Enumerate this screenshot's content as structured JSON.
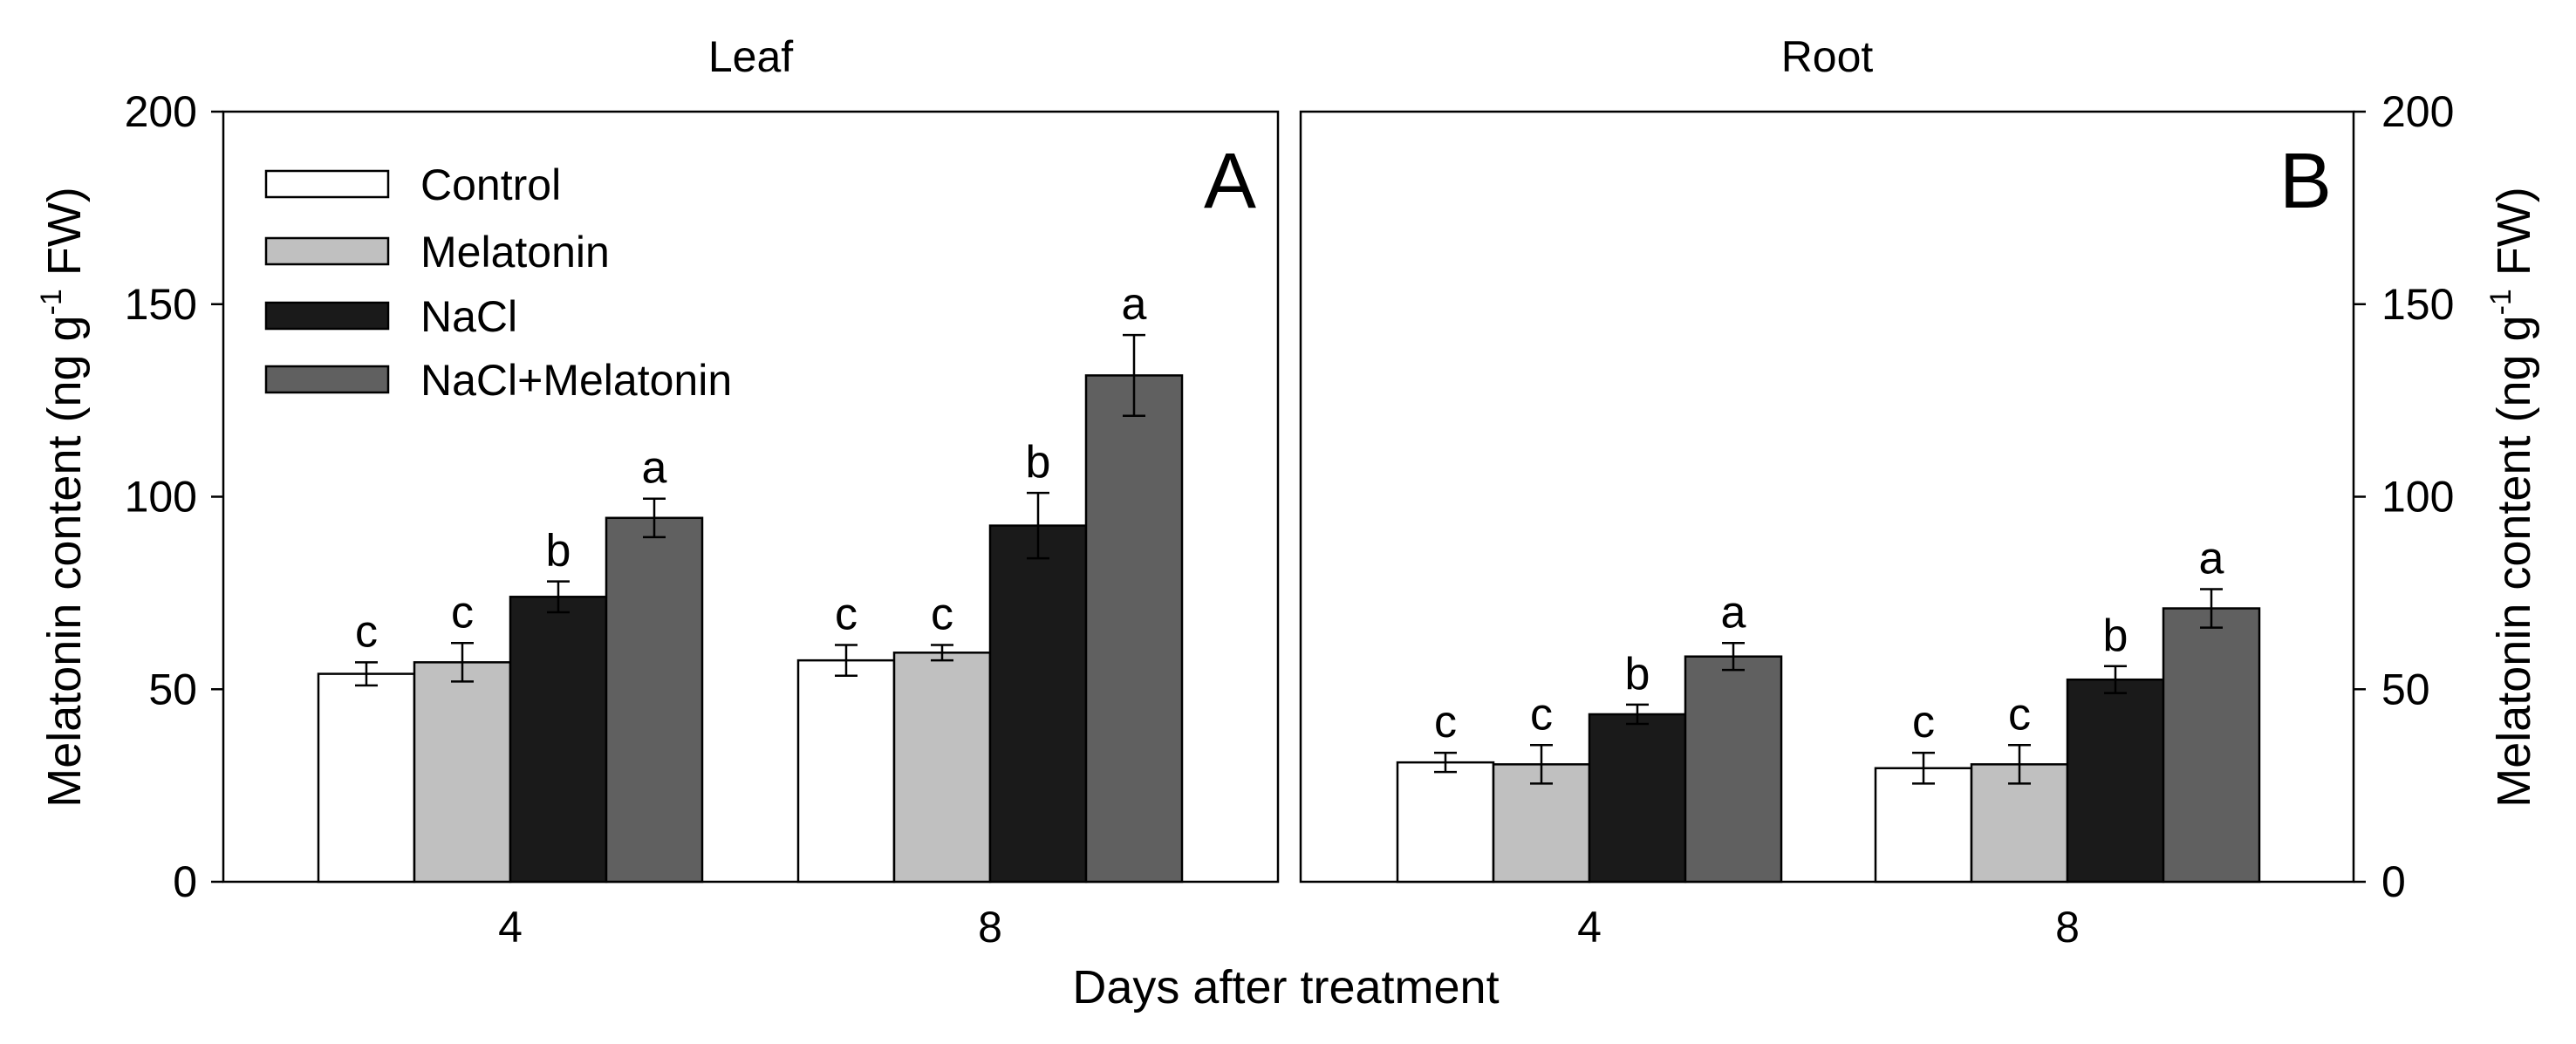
{
  "chart_data": [
    {
      "type": "bar",
      "title": "Leaf",
      "panel_label": "A",
      "categories": [
        "4",
        "8"
      ],
      "xlabel": "Days after treatment",
      "ylabel": "Melatonin content (ng g-1 FW)",
      "ylim": [
        0,
        200
      ],
      "yticks": [
        "0",
        "50",
        "100",
        "150",
        "200"
      ],
      "legend_position": "top-left",
      "series": [
        {
          "name": "Control",
          "color": "#ffffff",
          "values": [
            54,
            57.5
          ],
          "errors": [
            3,
            4
          ],
          "letters": [
            "c",
            "c"
          ]
        },
        {
          "name": "Melatonin",
          "color": "#c0c0c0",
          "values": [
            57,
            59.5
          ],
          "errors": [
            5,
            2
          ],
          "letters": [
            "c",
            "c"
          ]
        },
        {
          "name": "NaCl",
          "color": "#1a1a1a",
          "values": [
            74,
            92.5
          ],
          "errors": [
            4,
            8.5
          ],
          "letters": [
            "b",
            "b"
          ]
        },
        {
          "name": "NaCl+Melatonin",
          "color": "#606060",
          "values": [
            94.5,
            131.5
          ],
          "errors": [
            5,
            10.5
          ],
          "letters": [
            "a",
            "a"
          ]
        }
      ]
    },
    {
      "type": "bar",
      "title": "Root",
      "panel_label": "B",
      "categories": [
        "4",
        "8"
      ],
      "xlabel": "Days after treatment",
      "ylabel": "Melatonin content (ng g-1 FW)",
      "ylim": [
        0,
        200
      ],
      "yticks": [
        "0",
        "50",
        "100",
        "150",
        "200"
      ],
      "series": [
        {
          "name": "Control",
          "color": "#ffffff",
          "values": [
            31,
            29.5
          ],
          "errors": [
            2.5,
            4
          ],
          "letters": [
            "c",
            "c"
          ]
        },
        {
          "name": "Melatonin",
          "color": "#c0c0c0",
          "values": [
            30.5,
            30.5
          ],
          "errors": [
            5,
            5
          ],
          "letters": [
            "c",
            "c"
          ]
        },
        {
          "name": "NaCl",
          "color": "#1a1a1a",
          "values": [
            43.5,
            52.5
          ],
          "errors": [
            2.5,
            3.5
          ],
          "letters": [
            "b",
            "b"
          ]
        },
        {
          "name": "NaCl+Melatonin",
          "color": "#606060",
          "values": [
            58.5,
            71
          ],
          "errors": [
            3.5,
            5
          ],
          "letters": [
            "a",
            "a"
          ]
        }
      ]
    }
  ],
  "axis": {
    "xlabel": "Days after treatment",
    "ylabel_main": "Melatonin content (ng g",
    "ylabel_sup": "-1",
    "ylabel_end": " FW)"
  }
}
